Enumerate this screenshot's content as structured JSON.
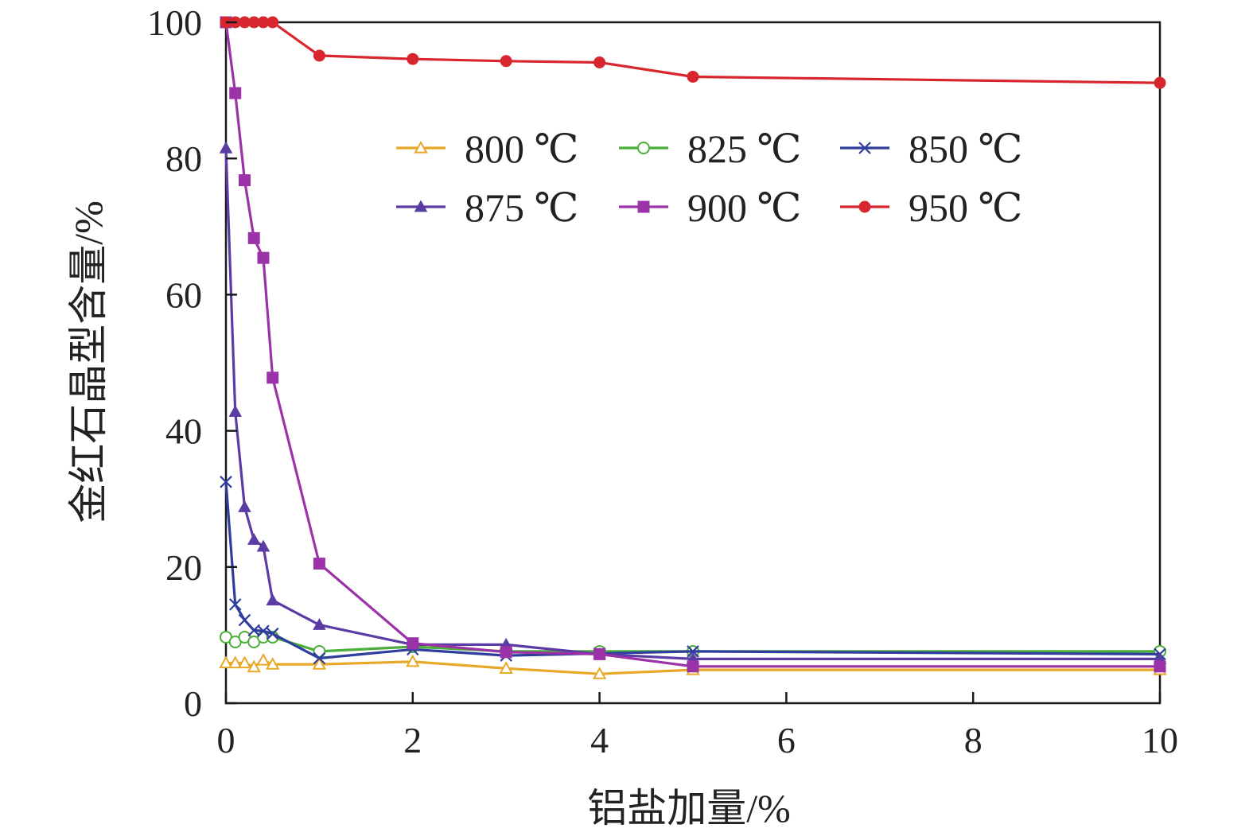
{
  "chart_data": {
    "type": "line",
    "title": "",
    "xlabel": "铝盐加量/%",
    "ylabel": "金红石晶型含量/%",
    "xlim": [
      0,
      10
    ],
    "ylim": [
      0,
      100
    ],
    "x_ticks": [
      "0",
      "2",
      "4",
      "6",
      "8",
      "10"
    ],
    "y_ticks": [
      "0",
      "20",
      "40",
      "60",
      "80",
      "100"
    ],
    "grid": false,
    "legend_position": "top-center",
    "series": [
      {
        "name": "800 ℃",
        "color": "#e8a827",
        "marker": "triangle-open",
        "points": [
          [
            0,
            5.9
          ],
          [
            0.1,
            5.9
          ],
          [
            0.2,
            5.9
          ],
          [
            0.3,
            5.3
          ],
          [
            0.4,
            6.3
          ],
          [
            0.5,
            5.7
          ],
          [
            1,
            5.7
          ],
          [
            2,
            6.1
          ],
          [
            3,
            5.1
          ],
          [
            4,
            4.3
          ],
          [
            5,
            4.9
          ],
          [
            10,
            4.9
          ]
        ]
      },
      {
        "name": "825 ℃",
        "color": "#4cae3a",
        "marker": "circle-open",
        "points": [
          [
            0,
            9.7
          ],
          [
            0.1,
            9.0
          ],
          [
            0.2,
            9.7
          ],
          [
            0.3,
            9.0
          ],
          [
            0.4,
            9.7
          ],
          [
            0.5,
            9.7
          ],
          [
            1,
            7.6
          ],
          [
            2,
            8.3
          ],
          [
            3,
            7.6
          ],
          [
            4,
            7.6
          ],
          [
            5,
            7.6
          ],
          [
            10,
            7.6
          ]
        ]
      },
      {
        "name": "850 ℃",
        "color": "#2f3d9e",
        "marker": "x",
        "points": [
          [
            0,
            32.5
          ],
          [
            0.1,
            14.5
          ],
          [
            0.2,
            12.2
          ],
          [
            0.3,
            10.7
          ],
          [
            0.4,
            10.6
          ],
          [
            0.5,
            10.2
          ],
          [
            1,
            6.6
          ],
          [
            2,
            7.9
          ],
          [
            3,
            7.0
          ],
          [
            4,
            7.3
          ],
          [
            5,
            7.6
          ],
          [
            10,
            7.2
          ]
        ]
      },
      {
        "name": "875 ℃",
        "color": "#5a3ca4",
        "marker": "triangle-filled",
        "points": [
          [
            0,
            81.5
          ],
          [
            0.1,
            42.8
          ],
          [
            0.2,
            28.8
          ],
          [
            0.3,
            24.0
          ],
          [
            0.4,
            23.0
          ],
          [
            0.5,
            15.1
          ],
          [
            1,
            11.5
          ],
          [
            2,
            8.6
          ],
          [
            3,
            8.6
          ],
          [
            4,
            7.2
          ],
          [
            5,
            6.5
          ],
          [
            10,
            6.5
          ]
        ]
      },
      {
        "name": "900 ℃",
        "color": "#9b32a8",
        "marker": "square-filled",
        "points": [
          [
            0,
            100
          ],
          [
            0.1,
            89.6
          ],
          [
            0.2,
            76.8
          ],
          [
            0.3,
            68.3
          ],
          [
            0.4,
            65.4
          ],
          [
            0.5,
            47.8
          ],
          [
            1,
            20.5
          ],
          [
            2,
            8.8
          ],
          [
            3,
            7.5
          ],
          [
            4,
            7.2
          ],
          [
            5,
            5.4
          ],
          [
            10,
            5.4
          ]
        ]
      },
      {
        "name": "950 ℃",
        "color": "#d8262e",
        "marker": "circle-filled",
        "points": [
          [
            0,
            100
          ],
          [
            0.1,
            100
          ],
          [
            0.2,
            100
          ],
          [
            0.3,
            100
          ],
          [
            0.4,
            100
          ],
          [
            0.5,
            100
          ],
          [
            1,
            95.1
          ],
          [
            2,
            94.6
          ],
          [
            3,
            94.3
          ],
          [
            4,
            94.1
          ],
          [
            5,
            92.0
          ],
          [
            10,
            91.1
          ]
        ]
      }
    ]
  }
}
